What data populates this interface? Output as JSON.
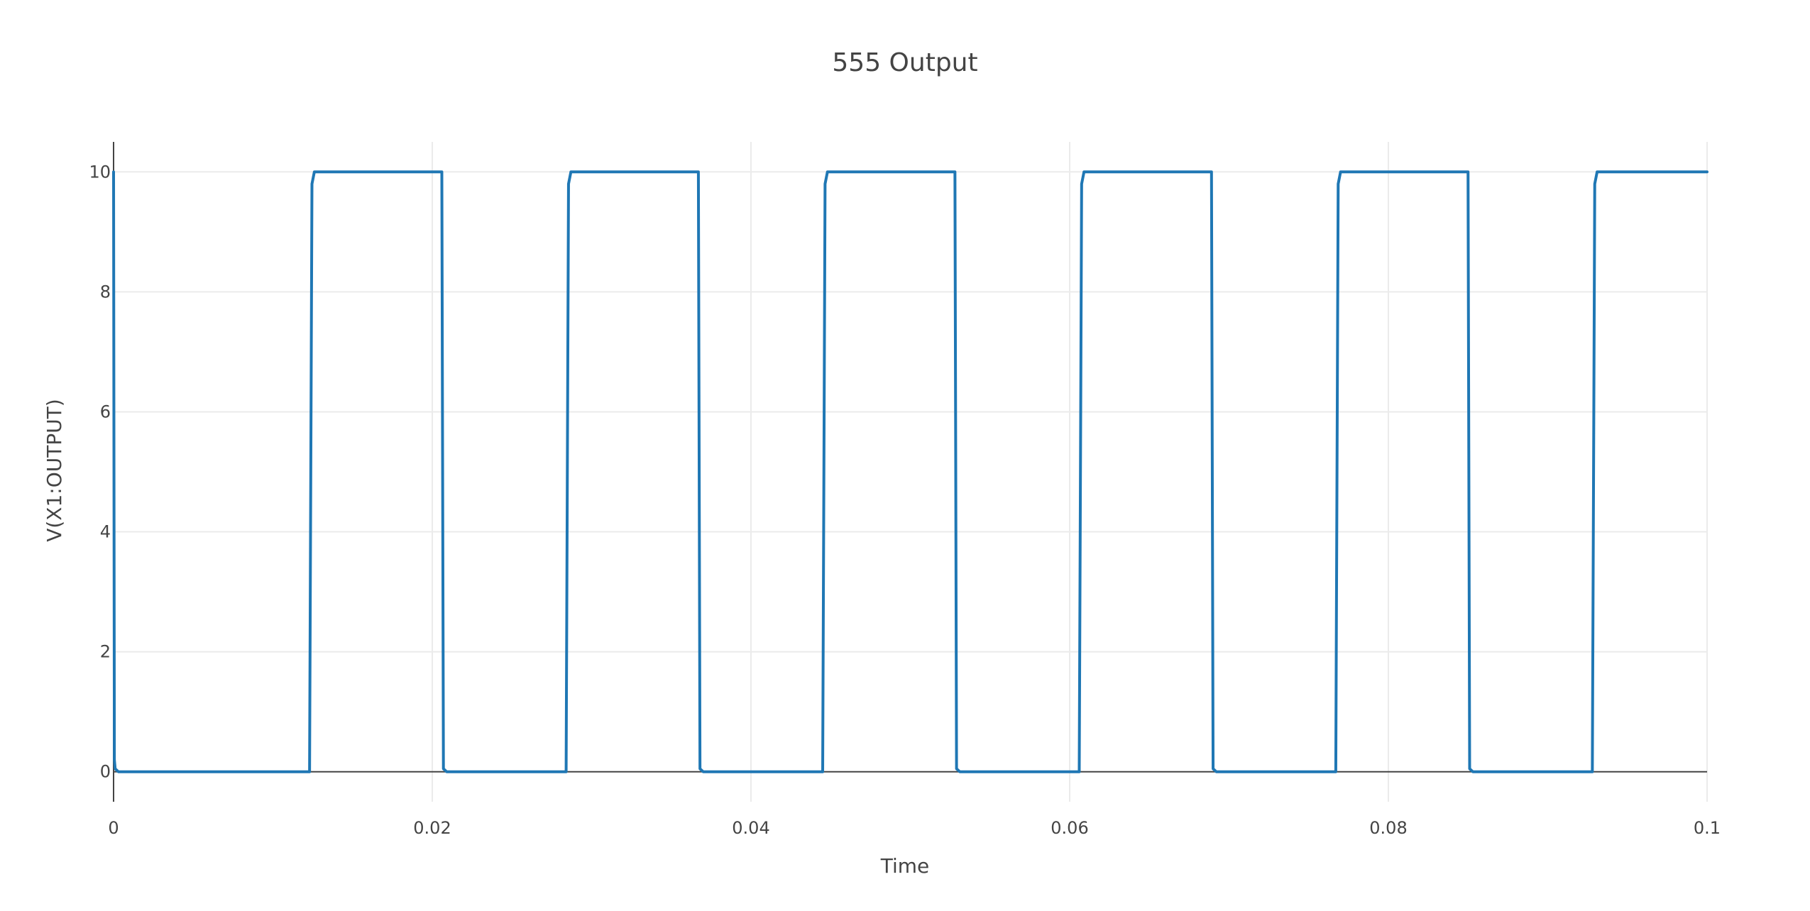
{
  "chart_data": {
    "type": "line",
    "title": "555 Output",
    "xlabel": "Time",
    "ylabel": "V(X1:OUTPUT)",
    "xlim": [
      0,
      0.1
    ],
    "ylim": [
      -0.5,
      10.5
    ],
    "x_ticks": [
      0,
      0.02,
      0.04,
      0.06,
      0.08,
      0.1
    ],
    "x_tick_labels": [
      "0",
      "0.02",
      "0.04",
      "0.06",
      "0.08",
      "0.1"
    ],
    "y_ticks": [
      0,
      2,
      4,
      6,
      8,
      10
    ],
    "y_tick_labels": [
      "0",
      "2",
      "4",
      "6",
      "8",
      "10"
    ],
    "grid": true,
    "line_color": "#1f77b4",
    "series": [
      {
        "x": [
          0,
          5e-05,
          0.0001,
          0.0003,
          0.0123,
          0.01245,
          0.0126,
          0.0127,
          0.0206,
          0.0207,
          0.0209,
          0.0284,
          0.02855,
          0.0287,
          0.0288,
          0.0367,
          0.0368,
          0.037,
          0.0445,
          0.04465,
          0.0448,
          0.0449,
          0.0528,
          0.0529,
          0.0531,
          0.0606,
          0.06075,
          0.0609,
          0.061,
          0.0689,
          0.069,
          0.0692,
          0.0767,
          0.07685,
          0.077,
          0.0771,
          0.085,
          0.0851,
          0.0853,
          0.0928,
          0.09295,
          0.0931,
          0.0932,
          0.1
        ],
        "y": [
          10,
          0.2,
          0.05,
          0,
          0,
          9.8,
          10,
          10,
          10,
          0.05,
          0,
          0,
          9.8,
          10,
          10,
          10,
          0.05,
          0,
          0,
          9.8,
          10,
          10,
          10,
          0.05,
          0,
          0,
          9.8,
          10,
          10,
          10,
          0.05,
          0,
          0,
          9.8,
          10,
          10,
          10,
          0.05,
          0,
          0,
          9.8,
          10,
          10,
          10
        ]
      }
    ]
  }
}
